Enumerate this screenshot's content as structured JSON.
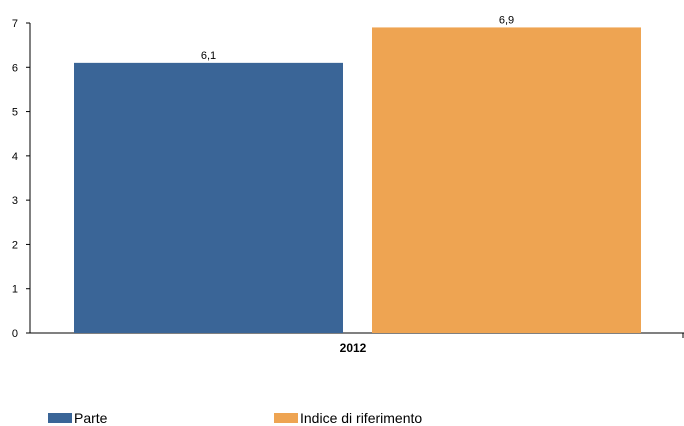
{
  "chart_data": {
    "type": "bar",
    "categories": [
      "2012"
    ],
    "series": [
      {
        "name": "Parte",
        "values": [
          6.1
        ],
        "color": "#3a6597",
        "value_label": "6,1"
      },
      {
        "name": "Indice di riferimento",
        "values": [
          6.9
        ],
        "color": "#eea452",
        "value_label": "6,9"
      }
    ],
    "ylim": [
      0,
      7
    ],
    "yticks": [
      0,
      1,
      2,
      3,
      4,
      5,
      6,
      7
    ],
    "grid": false,
    "legend_position": "bottom-left"
  }
}
